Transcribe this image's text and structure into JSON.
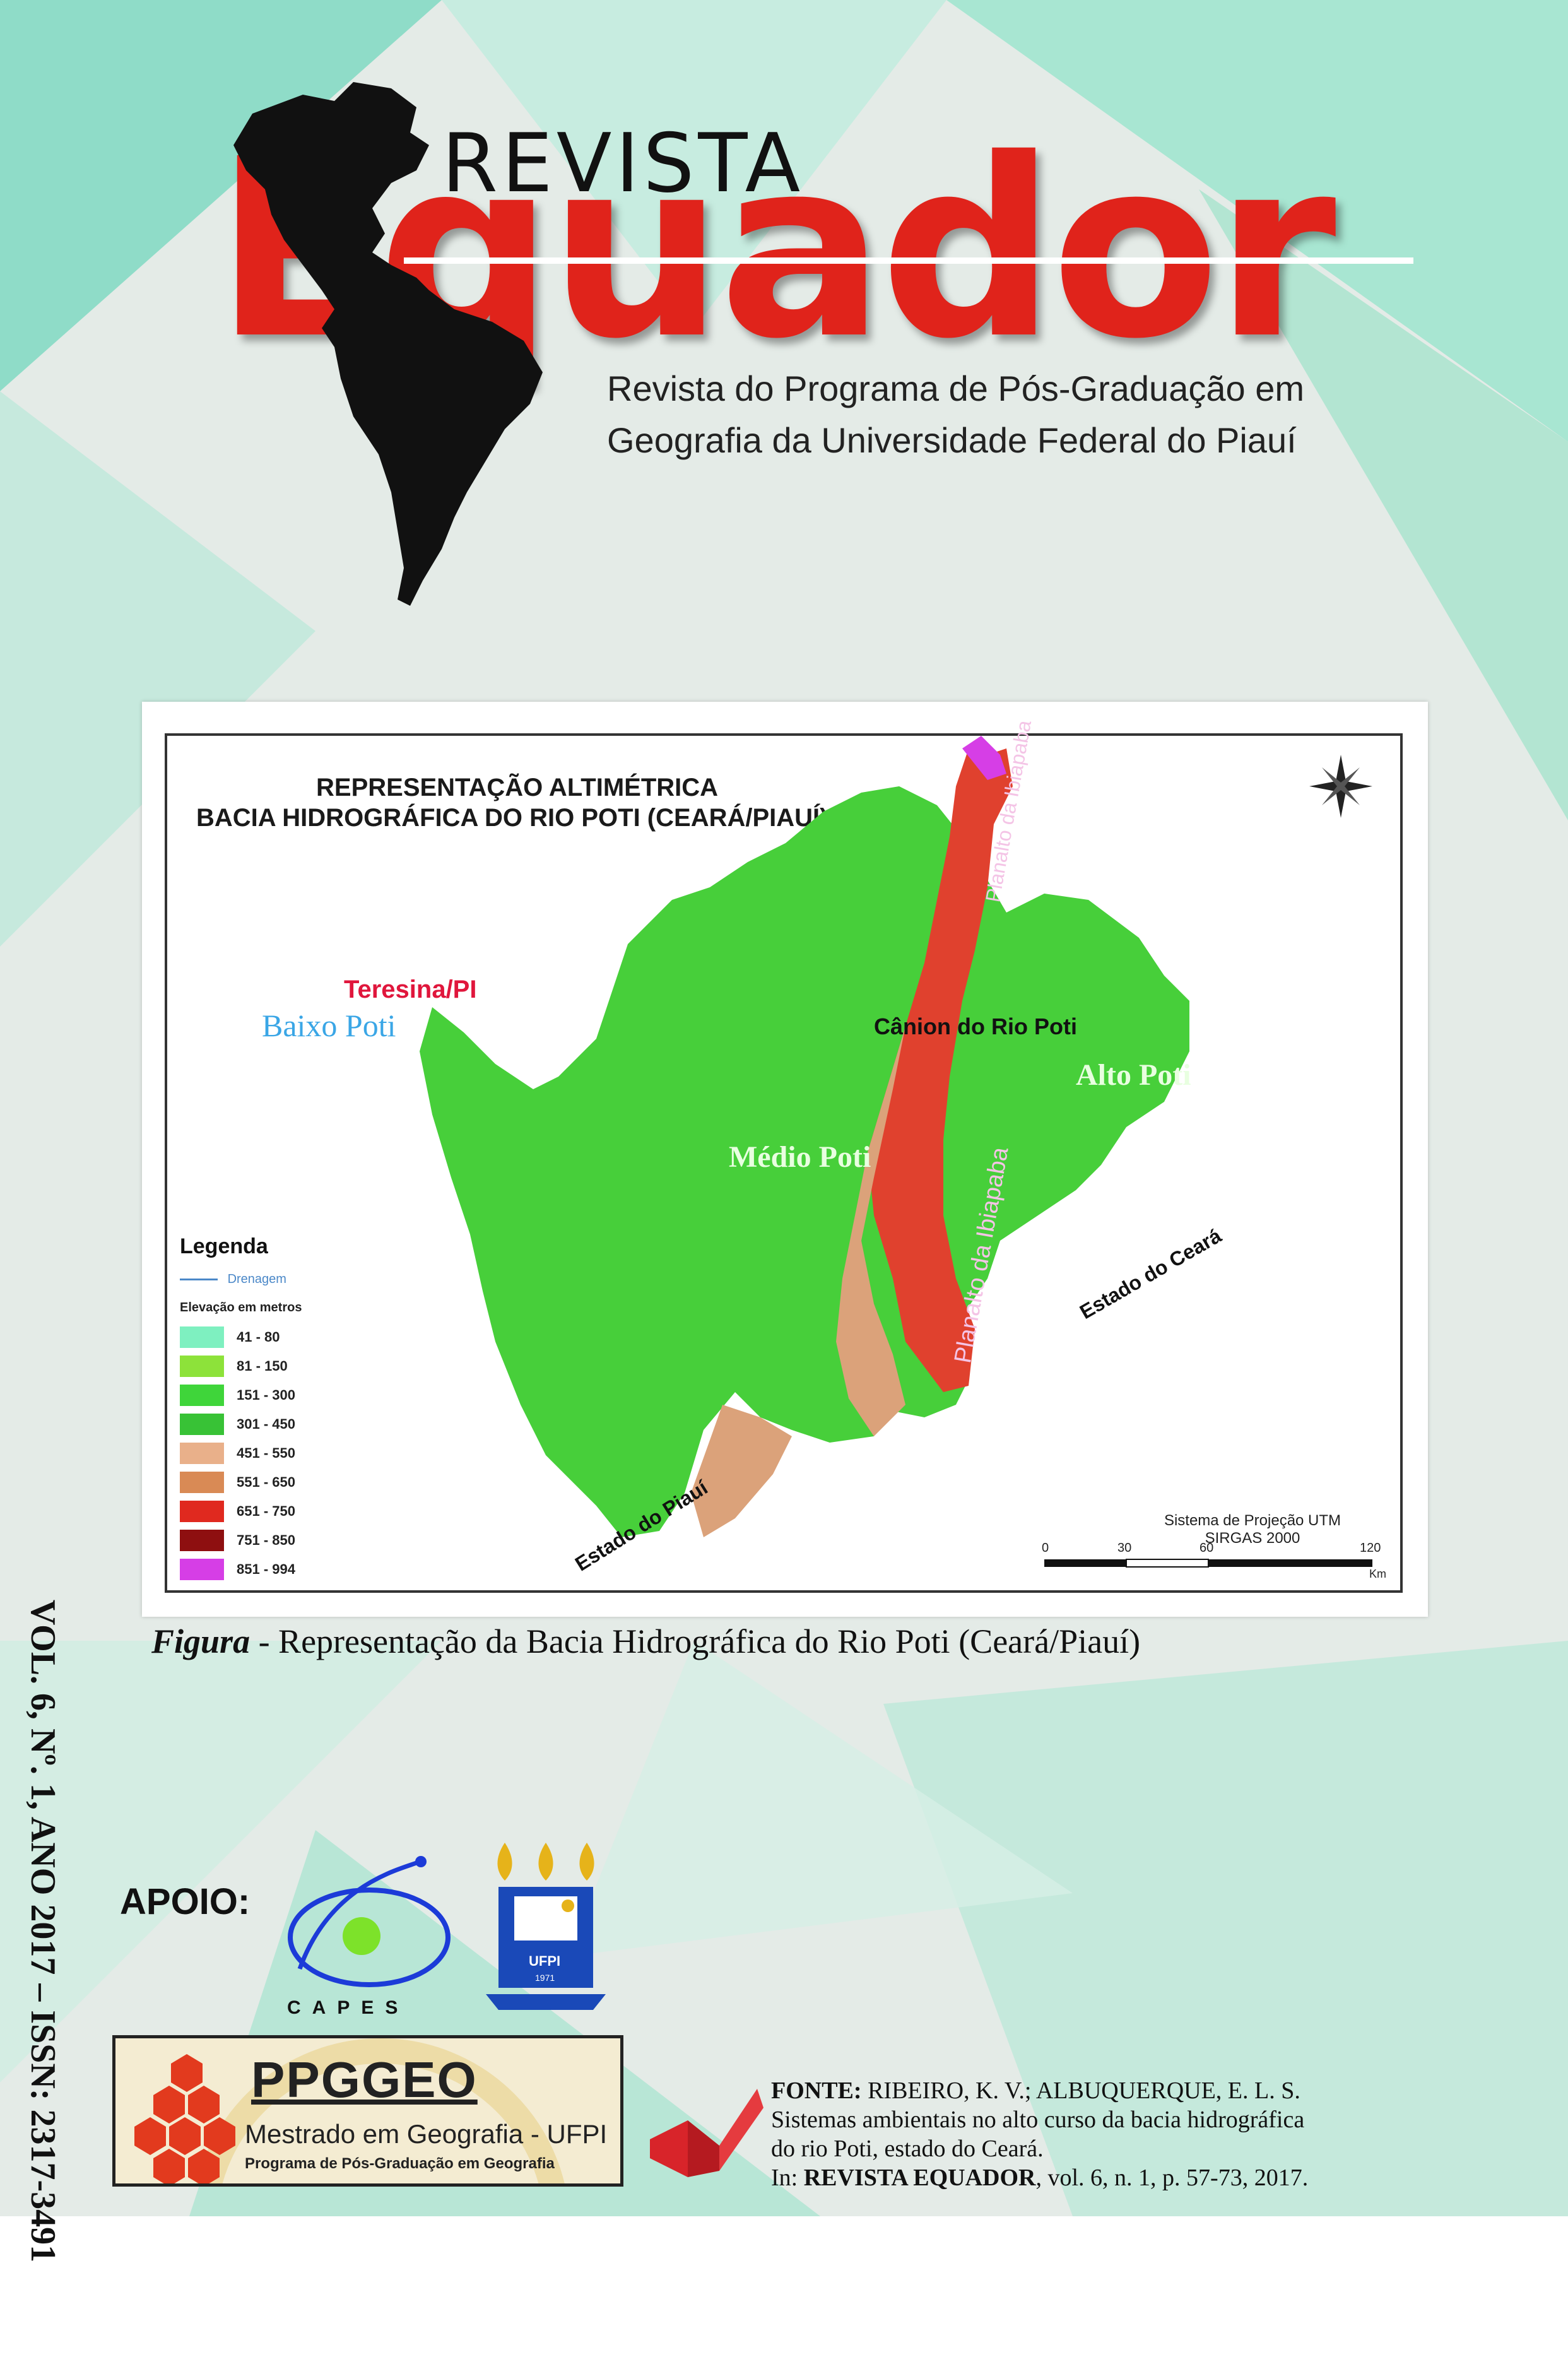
{
  "header": {
    "revista": "REVISTA",
    "title_word": "Equador",
    "subtitle_line1": "Revista do Programa de Pós-Graduação em",
    "subtitle_line2": "Geografia da Universidade Federal do Piauí"
  },
  "map": {
    "title_line1": "REPRESENTAÇÃO ALTIMÉTRICA",
    "title_line2": "BACIA HIDROGRÁFICA DO RIO POTI (CEARÁ/PIAUÍ)",
    "labels": {
      "teresina": "Teresina/PI",
      "baixo_poti": "Baixo Poti",
      "medio_poti": "Médio Poti",
      "alto_poti": "Alto Poti",
      "canion": "Cânion do Rio Poti",
      "planalto_top": "Planalto da Ibiapaba",
      "planalto_mid": "Planalto da Ibiapaba",
      "estado_ceara": "Estado do Ceará",
      "estado_piaui": "Estado do Piauí"
    },
    "legend": {
      "title": "Legenda",
      "drainage": "Drenagem",
      "elevation_title": "Elevação em metros",
      "classes": [
        {
          "label": "41 - 80",
          "color": "#7ef0c0"
        },
        {
          "label": "81 - 150",
          "color": "#8de23a"
        },
        {
          "label": "151 - 300",
          "color": "#3fd53a"
        },
        {
          "label": "301 - 450",
          "color": "#38c236"
        },
        {
          "label": "451 - 550",
          "color": "#e9b08a"
        },
        {
          "label": "551 - 650",
          "color": "#d98a55"
        },
        {
          "label": "651 - 750",
          "color": "#e0291f"
        },
        {
          "label": "751 - 850",
          "color": "#8e0f10"
        },
        {
          "label": "851 - 994",
          "color": "#d63ee6"
        }
      ]
    },
    "projection_line1": "Sistema de Projeção UTM",
    "projection_line2": "SIRGAS 2000",
    "scale": {
      "ticks": [
        "0",
        "30",
        "60",
        "120"
      ],
      "unit": "Km"
    }
  },
  "caption": {
    "figura": "Figura",
    "text": " - Representação da Bacia Hidrográfica do Rio Poti (Ceará/Piauí)"
  },
  "spine": "VOL. 6, Nº. 1, ANO 2017 – ISSN: 2317-3491",
  "support": {
    "apoio": "APOIO:",
    "capes": "CAPES",
    "ufpi_badge": "UFPI",
    "ufpi_year": "1971"
  },
  "ppggeo": {
    "title": "PPGGEO",
    "subtitle": "Mestrado em Geografia - UFPI",
    "subtitle2": "Programa de Pós-Graduação em Geografia"
  },
  "fonte": {
    "label": "FONTE:",
    "authors": " RIBEIRO, K. V.; ALBUQUERQUE, E. L. S.",
    "line2": "Sistemas ambientais no alto curso da bacia hidrográfica",
    "line3": "do rio Poti, estado do Ceará.",
    "in_prefix": "In: ",
    "journal": "REVISTA EQUADOR",
    "citation": ", vol. 6, n. 1, p. 57-73, 2017."
  },
  "colors": {
    "brand_red": "#e0231b",
    "teal_light": "#cfeee2",
    "teal": "#9ee3c9"
  }
}
